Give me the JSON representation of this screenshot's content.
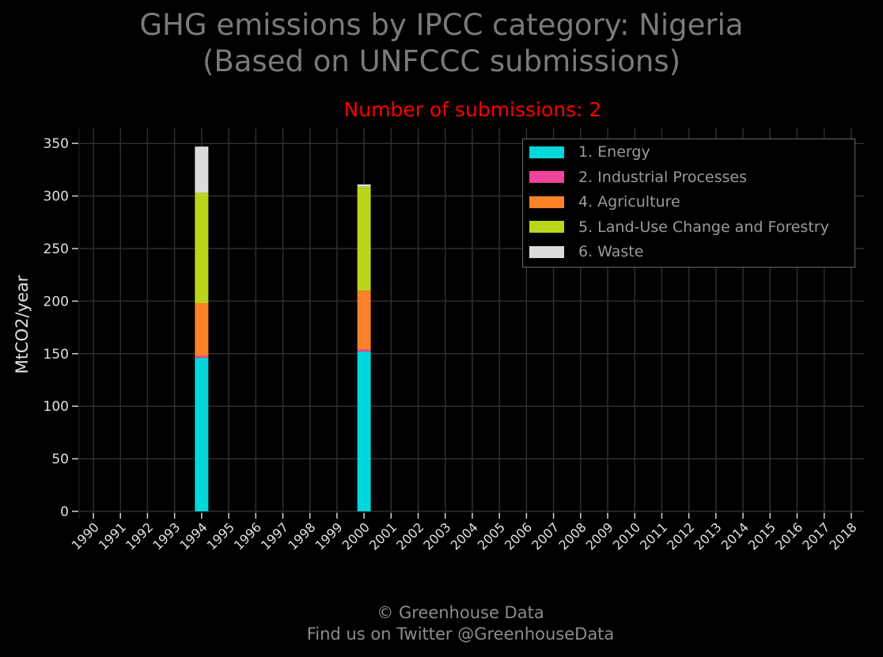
{
  "title_line1": "GHG emissions by IPCC category: Nigeria",
  "title_line2": "(Based on UNFCCC submissions)",
  "subtitle": "Number of submissions: 2",
  "footer_line1": "© Greenhouse Data",
  "footer_line2": "Find us on Twitter @GreenhouseData",
  "chart_data": {
    "type": "bar",
    "stacked": true,
    "title": "GHG emissions by IPCC category: Nigeria (Based on UNFCCC submissions)",
    "subtitle": "Number of submissions: 2",
    "xlabel": "",
    "ylabel": "MtCO2/year",
    "ylim": [
      0,
      360
    ],
    "yticks": [
      0,
      50,
      100,
      150,
      200,
      250,
      300,
      350
    ],
    "categories": [
      "1990",
      "1991",
      "1992",
      "1993",
      "1994",
      "1995",
      "1996",
      "1997",
      "1998",
      "1999",
      "2000",
      "2001",
      "2002",
      "2003",
      "2004",
      "2005",
      "2006",
      "2007",
      "2008",
      "2009",
      "2010",
      "2011",
      "2012",
      "2013",
      "2014",
      "2015",
      "2016",
      "2017",
      "2018"
    ],
    "grid": true,
    "legend_position": "top-right",
    "series": [
      {
        "name": "1. Energy",
        "color": "#00d8dc",
        "values": {
          "1994": 146,
          "2000": 152
        }
      },
      {
        "name": "2. Industrial Processes",
        "color": "#f0439a",
        "values": {
          "1994": 2,
          "2000": 2
        }
      },
      {
        "name": "4. Agriculture",
        "color": "#fb8228",
        "values": {
          "1994": 50,
          "2000": 56
        }
      },
      {
        "name": "5. Land-Use Change and Forestry",
        "color": "#bbd51a",
        "values": {
          "1994": 105,
          "2000": 99
        }
      },
      {
        "name": "6. Waste",
        "color": "#dcdcdc",
        "values": {
          "1994": 44,
          "2000": 2
        }
      }
    ]
  }
}
